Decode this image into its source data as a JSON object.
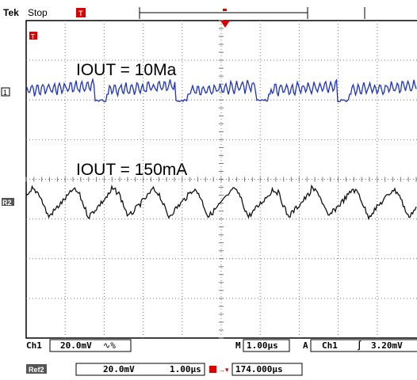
{
  "chart_data": {
    "type": "line",
    "grid": true,
    "series": [
      {
        "label": "IOUT = 10Ma",
        "color": "#1a2fe0",
        "channel_marker": "1",
        "waveform": "ripple-with-periodic-dips"
      },
      {
        "label": "IOUT = 150mA",
        "color": "#111111",
        "channel_marker": "R2",
        "waveform": "sawtooth-ripple"
      }
    ]
  },
  "scope": {
    "brand": "Tek",
    "run_state": "Stop",
    "trigger_marker": "T",
    "ch1_label": "Ch1",
    "ch1_scale": "20.0mV",
    "ch1_coupling": "∿%",
    "timebase_prefix": "M",
    "timebase": "1.00µs",
    "trigger_prefix": "A",
    "trigger_source": "Ch1",
    "trigger_slope": "∫",
    "trigger_level": "3.20mV",
    "ref_label": "Ref2",
    "ref_scale": "20.0mV",
    "ref_timebase": "1.00µs",
    "ref_position": "174.000µs"
  },
  "colors": {
    "ch1": "#1a2fe0",
    "ref2": "#111111",
    "marker_red": "#e00000",
    "ref_badge": "#555555"
  }
}
